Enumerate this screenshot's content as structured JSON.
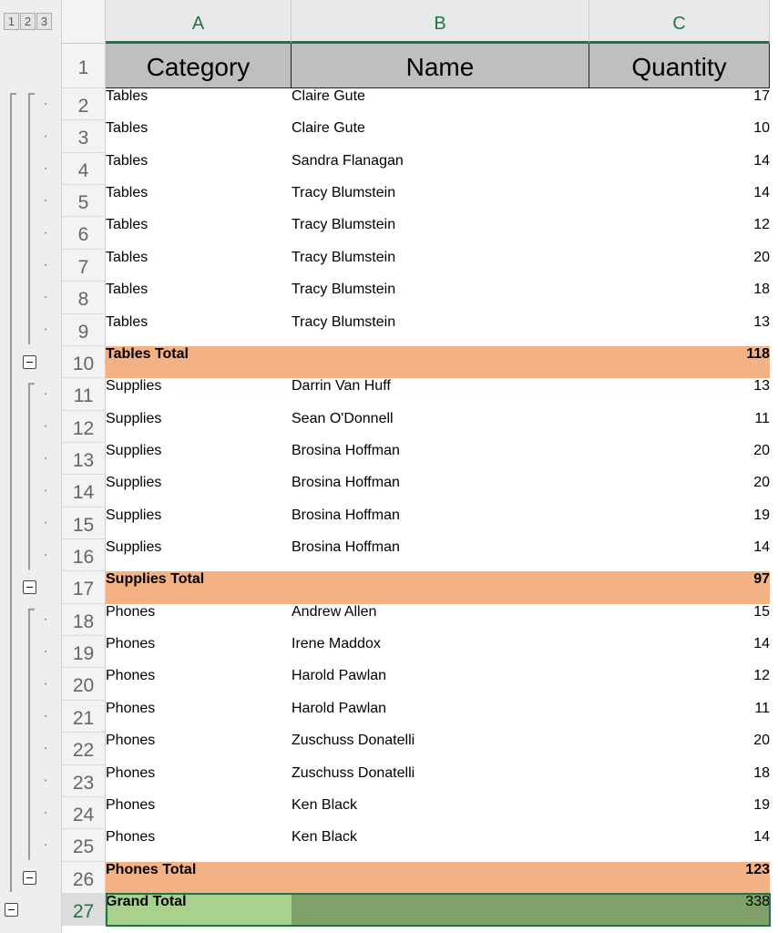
{
  "outline_levels": [
    "1",
    "2",
    "3"
  ],
  "columns": [
    "A",
    "B",
    "C"
  ],
  "row_numbers": [
    1,
    2,
    3,
    4,
    5,
    6,
    7,
    8,
    9,
    10,
    11,
    12,
    13,
    14,
    15,
    16,
    17,
    18,
    19,
    20,
    21,
    22,
    23,
    24,
    25,
    26,
    27
  ],
  "table": {
    "header": [
      "Category",
      "Name",
      "Quantity"
    ],
    "groups": [
      {
        "rows": [
          [
            "Tables",
            "Claire Gute",
            17
          ],
          [
            "Tables",
            "Claire Gute",
            10
          ],
          [
            "Tables",
            "Sandra Flanagan",
            14
          ],
          [
            "Tables",
            "Tracy Blumstein",
            14
          ],
          [
            "Tables",
            "Tracy Blumstein",
            12
          ],
          [
            "Tables",
            "Tracy Blumstein",
            20
          ],
          [
            "Tables",
            "Tracy Blumstein",
            18
          ],
          [
            "Tables",
            "Tracy Blumstein",
            13
          ]
        ],
        "total": {
          "label": "Tables Total",
          "quantity": 118
        }
      },
      {
        "rows": [
          [
            "Supplies",
            "Darrin Van Huff",
            13
          ],
          [
            "Supplies",
            "Sean O'Donnell",
            11
          ],
          [
            "Supplies",
            "Brosina Hoffman",
            20
          ],
          [
            "Supplies",
            "Brosina Hoffman",
            20
          ],
          [
            "Supplies",
            "Brosina Hoffman",
            19
          ],
          [
            "Supplies",
            "Brosina Hoffman",
            14
          ]
        ],
        "total": {
          "label": "Supplies Total",
          "quantity": 97
        }
      },
      {
        "rows": [
          [
            "Phones",
            "Andrew Allen",
            15
          ],
          [
            "Phones",
            "Irene Maddox",
            14
          ],
          [
            "Phones",
            "Harold Pawlan",
            12
          ],
          [
            "Phones",
            "Harold Pawlan",
            11
          ],
          [
            "Phones",
            "Zuschuss Donatelli",
            20
          ],
          [
            "Phones",
            "Zuschuss Donatelli",
            18
          ],
          [
            "Phones",
            "Ken Black",
            19
          ],
          [
            "Phones",
            "Ken Black",
            14
          ]
        ],
        "total": {
          "label": "Phones Total",
          "quantity": 123
        }
      }
    ],
    "grand_total": {
      "label": "Grand Total",
      "quantity": 338
    }
  }
}
